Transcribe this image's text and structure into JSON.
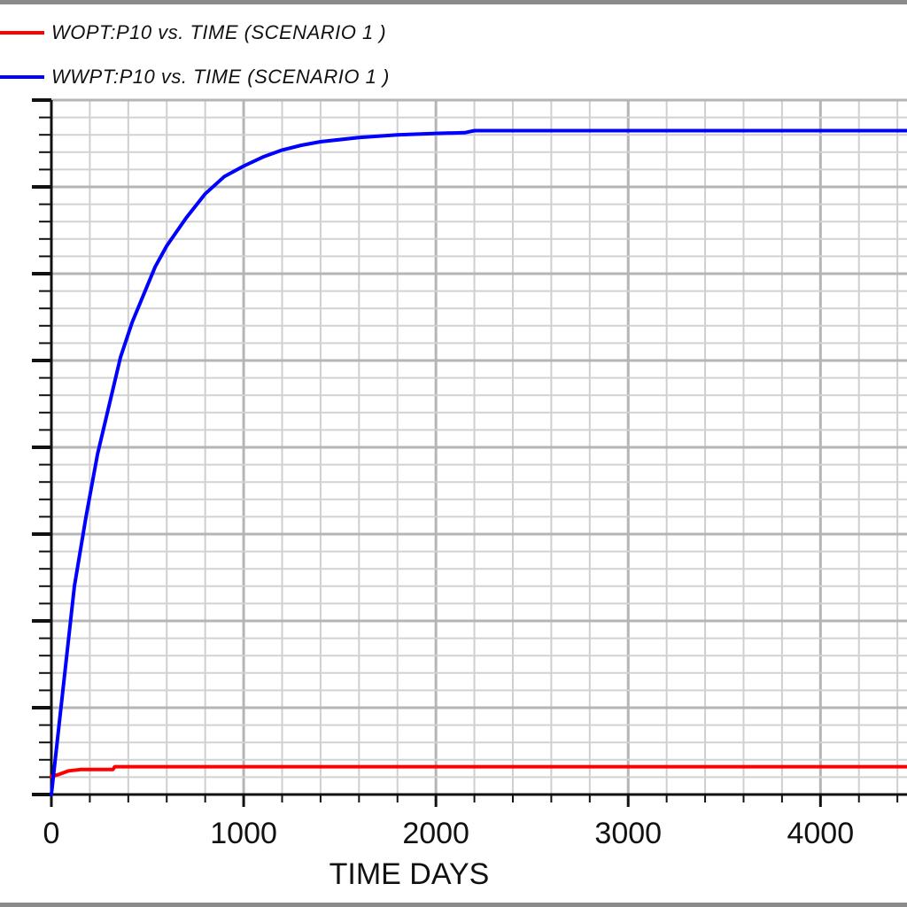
{
  "chart_data": {
    "type": "line",
    "title": "",
    "xlabel": "TIME    DAYS",
    "ylabel": "",
    "xlim": [
      0,
      4450
    ],
    "ylim": [
      0,
      100
    ],
    "x_ticks": [
      0,
      1000,
      2000,
      3000,
      4000
    ],
    "grid": true,
    "legend": "top-left",
    "series": [
      {
        "name": "WOPT:P10  vs.  TIME (SCENARIO 1 )",
        "color": "#ff0000",
        "x": [
          0,
          40,
          90,
          150,
          250,
          320,
          330,
          500,
          1000,
          2000,
          3000,
          4450
        ],
        "y": [
          2.6,
          2.9,
          3.4,
          3.6,
          3.6,
          3.6,
          4.0,
          4.0,
          4.0,
          4.0,
          4.0,
          4.0
        ]
      },
      {
        "name": "WWPT:P10  vs.  TIME (SCENARIO 1 )",
        "color": "#0000ff",
        "x": [
          0,
          60,
          120,
          180,
          240,
          300,
          360,
          420,
          480,
          540,
          600,
          700,
          800,
          900,
          1000,
          1100,
          1200,
          1300,
          1400,
          1600,
          1800,
          2000,
          2150,
          2200,
          3000,
          4450
        ],
        "y": [
          0,
          15,
          30,
          40,
          49,
          56,
          63,
          68,
          72,
          76,
          79,
          83,
          86.5,
          89,
          90.5,
          91.8,
          92.8,
          93.5,
          94,
          94.6,
          95,
          95.2,
          95.3,
          95.6,
          95.6,
          95.6
        ]
      }
    ]
  }
}
